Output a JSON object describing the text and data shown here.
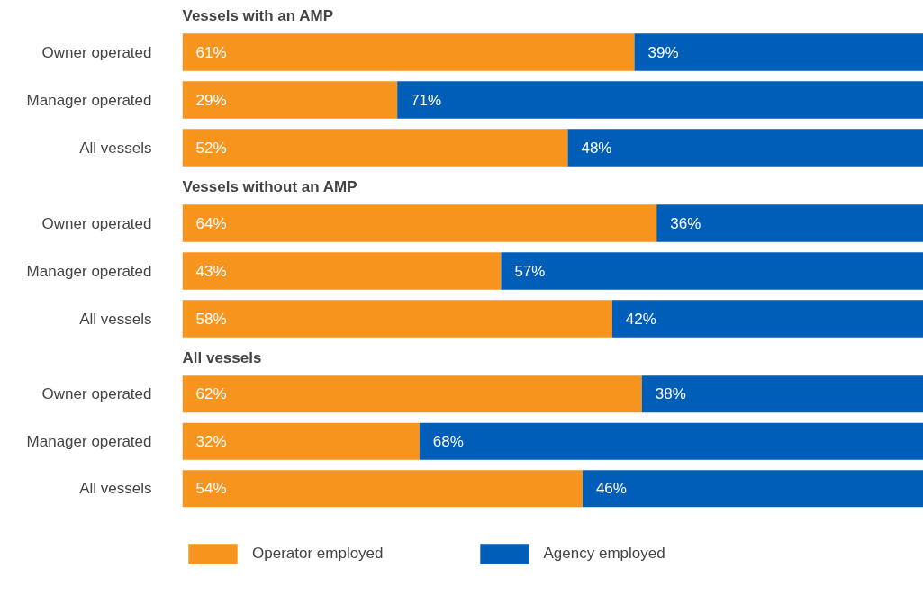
{
  "chart_data": [
    {
      "type": "bar",
      "orientation": "horizontal",
      "stacked": true,
      "title": "Vessels with an AMP",
      "categories": [
        "Owner operated",
        "Manager operated",
        "All vessels"
      ],
      "xlim": [
        0,
        100
      ],
      "tick_labels": "y",
      "series": [
        {
          "color": "#f7941d",
          "values": [
            61,
            29,
            52
          ],
          "value_labels": [
            "61%",
            "29%",
            "52%"
          ]
        },
        {
          "color": "#005eb8",
          "values": [
            39,
            71,
            48
          ],
          "value_labels": [
            "39%",
            "71%",
            "48%"
          ]
        }
      ]
    },
    {
      "type": "bar",
      "orientation": "horizontal",
      "stacked": true,
      "title": "Vessels without an AMP",
      "categories": [
        "Owner operated",
        "Manager operated",
        "All vessels"
      ],
      "xlim": [
        0,
        100
      ],
      "tick_labels": "y",
      "series": [
        {
          "color": "#f7941d",
          "values": [
            64,
            43,
            58
          ],
          "value_labels": [
            "64%",
            "43%",
            "58%"
          ]
        },
        {
          "color": "#005eb8",
          "values": [
            36,
            57,
            42
          ],
          "value_labels": [
            "36%",
            "57%",
            "42%"
          ]
        }
      ]
    },
    {
      "type": "bar",
      "orientation": "horizontal",
      "stacked": true,
      "title": "All vessels",
      "categories": [
        "Owner operated",
        "Manager operated",
        "All vessels"
      ],
      "xlim": [
        0,
        100
      ],
      "tick_labels": "y",
      "legend": "bottom",
      "series": [
        {
          "name": "Operator employed",
          "color": "#f7941d",
          "values": [
            62,
            32,
            54
          ],
          "value_labels": [
            "62%",
            "32%",
            "54%"
          ]
        },
        {
          "name": "Agency employed",
          "color": "#005eb8",
          "values": [
            38,
            68,
            46
          ],
          "value_labels": [
            "38%",
            "68%",
            "46%"
          ]
        }
      ]
    }
  ]
}
